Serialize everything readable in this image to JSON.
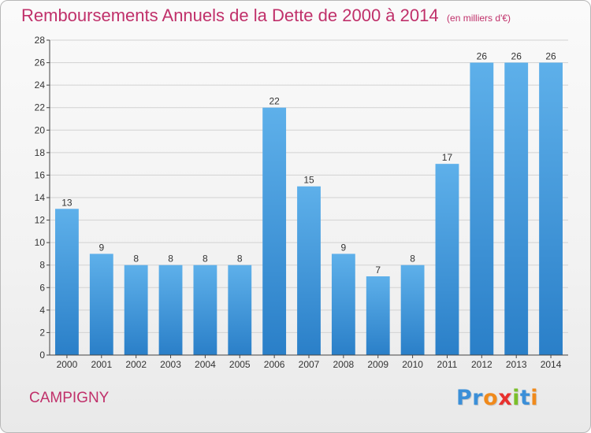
{
  "chart_data": {
    "type": "bar",
    "title": "Remboursements Annuels de la Dette de 2000 à 2014",
    "subtitle": "(en milliers d'€)",
    "xlabel": "",
    "ylabel": "",
    "categories": [
      "2000",
      "2001",
      "2002",
      "2003",
      "2004",
      "2005",
      "2006",
      "2007",
      "2008",
      "2009",
      "2010",
      "2011",
      "2012",
      "2013",
      "2014"
    ],
    "values": [
      13,
      9,
      8,
      8,
      8,
      8,
      22,
      15,
      9,
      7,
      8,
      17,
      26,
      26,
      26
    ],
    "ylim": [
      0,
      28
    ],
    "yticks": [
      0,
      2,
      4,
      6,
      8,
      10,
      12,
      14,
      16,
      18,
      20,
      22,
      24,
      26,
      28
    ],
    "grid": true,
    "legend": "none"
  },
  "footer": {
    "commune": "CAMPIGNY"
  },
  "logo": {
    "text": "Proxiti",
    "letters": [
      {
        "ch": "P",
        "color": "#3b8fd8"
      },
      {
        "ch": "r",
        "color": "#3b8fd8"
      },
      {
        "ch": "o",
        "color": "#f08a1c"
      },
      {
        "ch": "x",
        "color": "#e8312f"
      },
      {
        "ch": "i",
        "color": "#7bbf2a"
      },
      {
        "ch": "t",
        "color": "#3b8fd8"
      },
      {
        "ch": "i",
        "color": "#f08a1c"
      }
    ]
  },
  "colors": {
    "title": "#c0306a",
    "bar_light": "#5eb0ea",
    "bar_dark": "#2a7fc8",
    "grid": "#d2d2d2",
    "axis": "#444444"
  }
}
